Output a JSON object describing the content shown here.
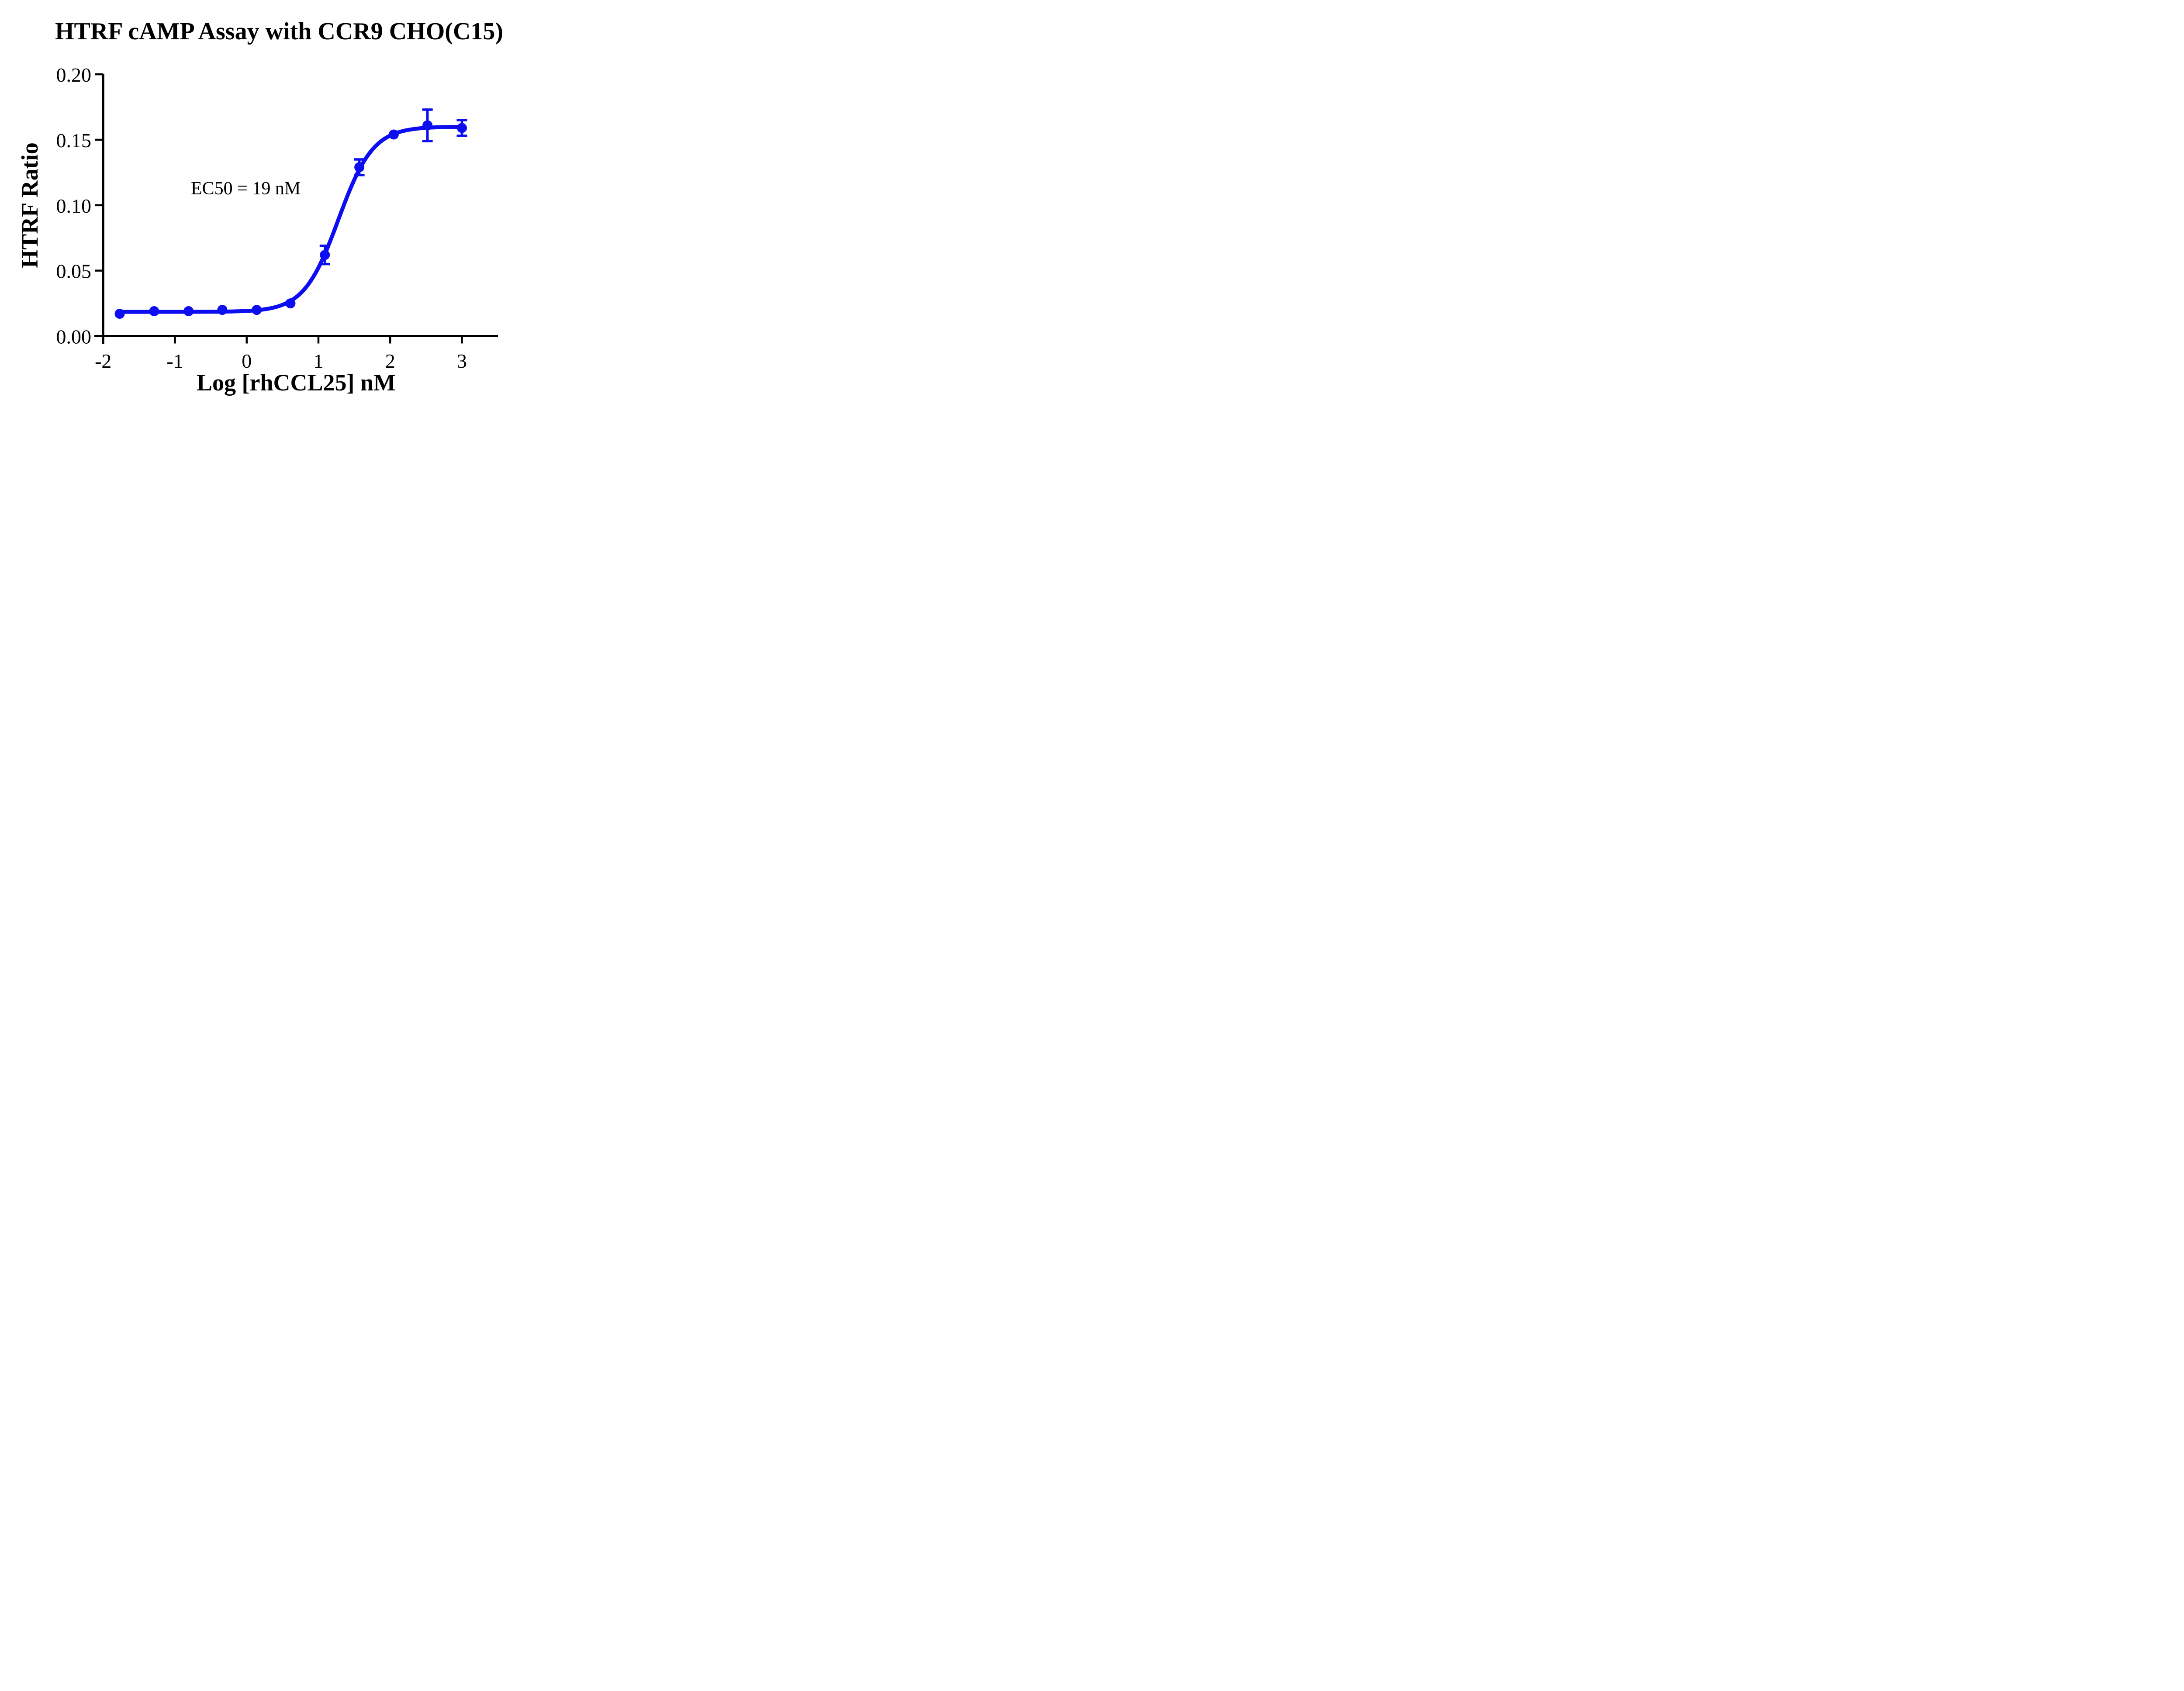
{
  "page": {
    "background": "#ffffff"
  },
  "chart_data": {
    "type": "line",
    "title": "HTRF cAMP Assay with CCR9 CHO(C15)",
    "xlabel": "Log [rhCCL25] nM",
    "ylabel": "HTRF Ratio",
    "annotation": "EC50 = 19 nM",
    "grid": false,
    "legend_position": "none",
    "xlim": [
      -2.15,
      3.45
    ],
    "ylim": [
      0,
      0.2
    ],
    "xticks": [
      "-2",
      "-1",
      "0",
      "1",
      "2",
      "3"
    ],
    "yticks": [
      "0.00",
      "0.05",
      "0.10",
      "0.15",
      "0.20"
    ],
    "series": [
      {
        "marker": "circle",
        "color": "#0d0df2",
        "x": [
          -1.77,
          -1.29,
          -0.81,
          -0.34,
          0.14,
          0.61,
          1.09,
          1.57,
          2.05,
          2.52,
          3.0
        ],
        "y": [
          0.017,
          0.019,
          0.019,
          0.02,
          0.02,
          0.025,
          0.062,
          0.129,
          0.154,
          0.161,
          0.159
        ],
        "yerr": [
          0,
          0,
          0,
          0,
          0,
          0,
          0.007,
          0.006,
          0,
          0.012,
          0.006
        ]
      }
    ],
    "fit": {
      "model": "4PL",
      "bottom": 0.0185,
      "top": 0.16,
      "logEC50": 1.28,
      "hill": 1.8
    },
    "axis_color": "#000000"
  }
}
